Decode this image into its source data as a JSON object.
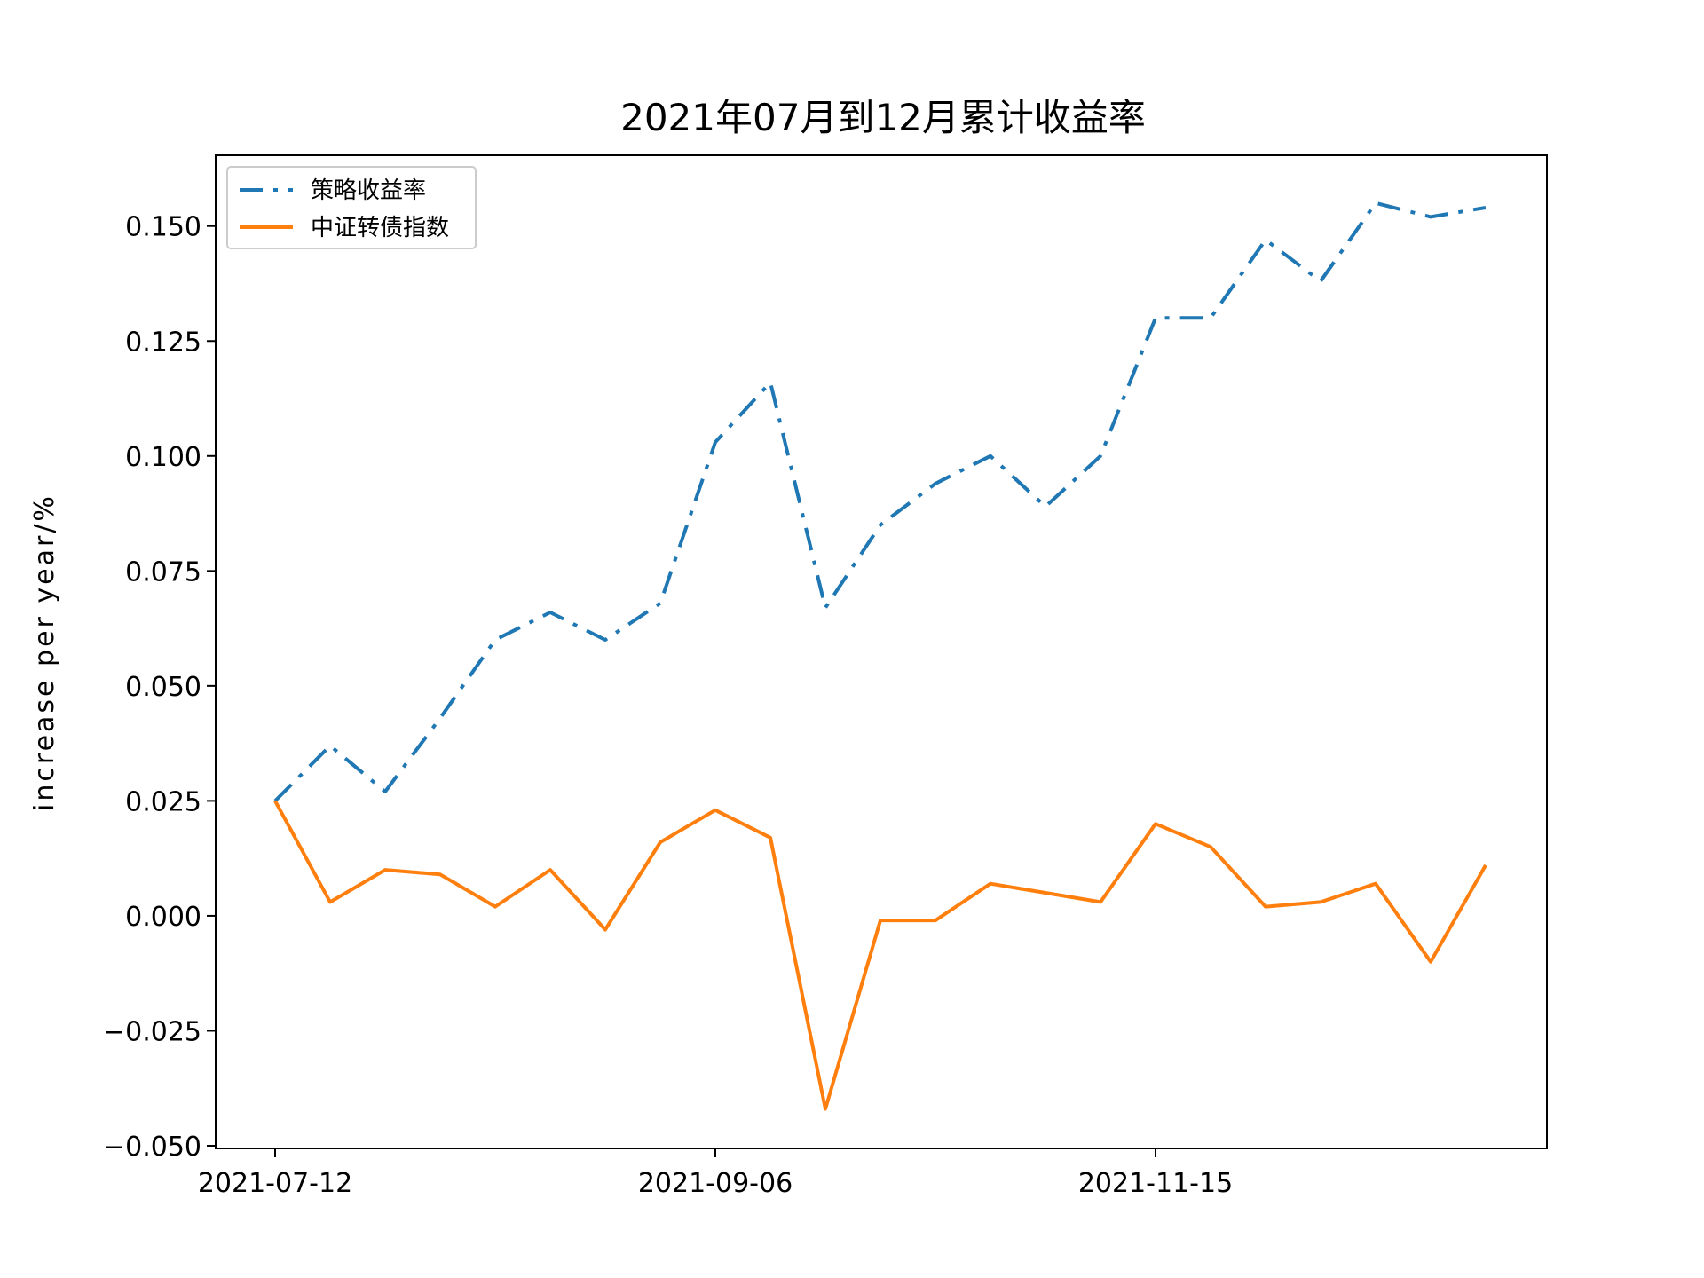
{
  "chart_data": {
    "type": "line",
    "title": "2021年07月到12月累计收益率",
    "xlabel": "",
    "ylabel": "increase per year/%",
    "ylim": [
      -0.05,
      0.165
    ],
    "grid": false,
    "legend_position": "top-left",
    "x_ticks": [
      {
        "label": "2021-07-12",
        "index": 0
      },
      {
        "label": "2021-09-06",
        "index": 8
      },
      {
        "label": "2021-11-15",
        "index": 16
      }
    ],
    "y_ticks": [
      {
        "value": 0.15,
        "label": "0.150"
      },
      {
        "value": 0.125,
        "label": "0.125"
      },
      {
        "value": 0.1,
        "label": "0.100"
      },
      {
        "value": 0.075,
        "label": "0.075"
      },
      {
        "value": 0.05,
        "label": "0.050"
      },
      {
        "value": 0.025,
        "label": "0.025"
      },
      {
        "value": 0.0,
        "label": "0.000"
      },
      {
        "value": -0.025,
        "label": "−0.025"
      },
      {
        "value": -0.05,
        "label": "−0.050"
      }
    ],
    "series": [
      {
        "name": "策略收益率",
        "color": "#1f77b4",
        "style": "dashdot",
        "values": [
          0.025,
          0.037,
          0.027,
          0.043,
          0.06,
          0.066,
          0.06,
          0.068,
          0.103,
          0.116,
          0.067,
          0.085,
          0.094,
          0.1,
          0.089,
          0.1,
          0.13,
          0.13,
          0.147,
          0.138,
          0.155,
          0.152,
          0.154
        ]
      },
      {
        "name": "中证转债指数",
        "color": "#ff7f0e",
        "style": "solid",
        "values": [
          0.025,
          0.003,
          0.01,
          0.009,
          0.002,
          0.01,
          -0.003,
          0.016,
          0.023,
          0.017,
          -0.042,
          -0.001,
          -0.001,
          0.007,
          0.005,
          0.003,
          0.02,
          0.015,
          0.002,
          0.003,
          0.007,
          -0.01,
          0.011
        ]
      }
    ]
  }
}
